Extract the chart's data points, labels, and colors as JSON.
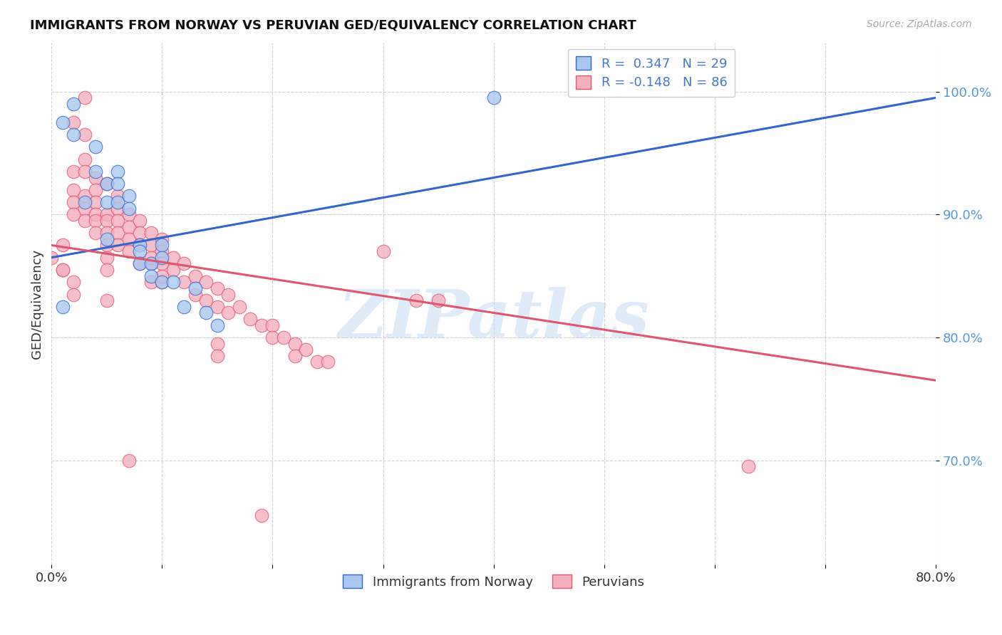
{
  "title": "IMMIGRANTS FROM NORWAY VS PERUVIAN GED/EQUIVALENCY CORRELATION CHART",
  "source": "Source: ZipAtlas.com",
  "ylabel": "GED/Equivalency",
  "yticks": [
    "70.0%",
    "80.0%",
    "90.0%",
    "100.0%"
  ],
  "ytick_vals": [
    0.7,
    0.8,
    0.9,
    1.0
  ],
  "xlim": [
    0.0,
    0.8
  ],
  "ylim": [
    0.615,
    1.04
  ],
  "norway_color": "#A8C8F0",
  "peru_color": "#F5B0C0",
  "norway_line_color": "#3366CC",
  "peru_line_color": "#E05570",
  "norway_R": 0.347,
  "norway_N": 29,
  "peru_R": -0.148,
  "peru_N": 86,
  "legend_label_norway": "Immigrants from Norway",
  "legend_label_peru": "Peruvians",
  "watermark": "ZIPatlas",
  "norway_line_x0": 0.0,
  "norway_line_y0": 0.865,
  "norway_line_x1": 0.8,
  "norway_line_y1": 0.995,
  "peru_line_x0": 0.0,
  "peru_line_y0": 0.875,
  "peru_line_x1": 0.8,
  "peru_line_y1": 0.765,
  "norway_x": [
    0.01,
    0.02,
    0.02,
    0.04,
    0.04,
    0.05,
    0.05,
    0.06,
    0.06,
    0.06,
    0.07,
    0.07,
    0.08,
    0.08,
    0.08,
    0.09,
    0.09,
    0.1,
    0.1,
    0.1,
    0.11,
    0.12,
    0.13,
    0.14,
    0.15,
    0.4,
    0.01,
    0.03,
    0.05
  ],
  "norway_y": [
    0.975,
    0.99,
    0.965,
    0.955,
    0.935,
    0.925,
    0.91,
    0.935,
    0.925,
    0.91,
    0.915,
    0.905,
    0.875,
    0.87,
    0.86,
    0.86,
    0.85,
    0.875,
    0.865,
    0.845,
    0.845,
    0.825,
    0.84,
    0.82,
    0.81,
    0.995,
    0.825,
    0.91,
    0.88
  ],
  "peru_x": [
    0.0,
    0.01,
    0.01,
    0.02,
    0.02,
    0.02,
    0.02,
    0.02,
    0.03,
    0.03,
    0.03,
    0.03,
    0.03,
    0.03,
    0.04,
    0.04,
    0.04,
    0.04,
    0.04,
    0.04,
    0.05,
    0.05,
    0.05,
    0.05,
    0.05,
    0.05,
    0.05,
    0.06,
    0.06,
    0.06,
    0.06,
    0.06,
    0.07,
    0.07,
    0.07,
    0.07,
    0.08,
    0.08,
    0.08,
    0.08,
    0.09,
    0.09,
    0.09,
    0.09,
    0.1,
    0.1,
    0.1,
    0.1,
    0.11,
    0.11,
    0.12,
    0.12,
    0.13,
    0.13,
    0.14,
    0.14,
    0.15,
    0.15,
    0.16,
    0.16,
    0.17,
    0.18,
    0.19,
    0.2,
    0.2,
    0.21,
    0.22,
    0.22,
    0.23,
    0.24,
    0.25,
    0.33,
    0.35,
    0.63,
    0.19,
    0.07,
    0.03,
    0.01,
    0.02,
    0.02,
    0.05,
    0.3,
    0.09,
    0.15,
    0.15,
    0.1
  ],
  "peru_y": [
    0.865,
    0.875,
    0.855,
    0.975,
    0.935,
    0.92,
    0.91,
    0.9,
    0.965,
    0.945,
    0.935,
    0.915,
    0.905,
    0.895,
    0.93,
    0.92,
    0.91,
    0.9,
    0.895,
    0.885,
    0.925,
    0.9,
    0.895,
    0.885,
    0.875,
    0.865,
    0.855,
    0.915,
    0.905,
    0.895,
    0.885,
    0.875,
    0.9,
    0.89,
    0.88,
    0.87,
    0.895,
    0.885,
    0.875,
    0.86,
    0.885,
    0.875,
    0.86,
    0.845,
    0.88,
    0.87,
    0.86,
    0.845,
    0.865,
    0.855,
    0.86,
    0.845,
    0.85,
    0.835,
    0.845,
    0.83,
    0.84,
    0.825,
    0.835,
    0.82,
    0.825,
    0.815,
    0.81,
    0.81,
    0.8,
    0.8,
    0.795,
    0.785,
    0.79,
    0.78,
    0.78,
    0.83,
    0.83,
    0.695,
    0.655,
    0.7,
    0.995,
    0.855,
    0.845,
    0.835,
    0.83,
    0.87,
    0.865,
    0.795,
    0.785,
    0.85
  ]
}
